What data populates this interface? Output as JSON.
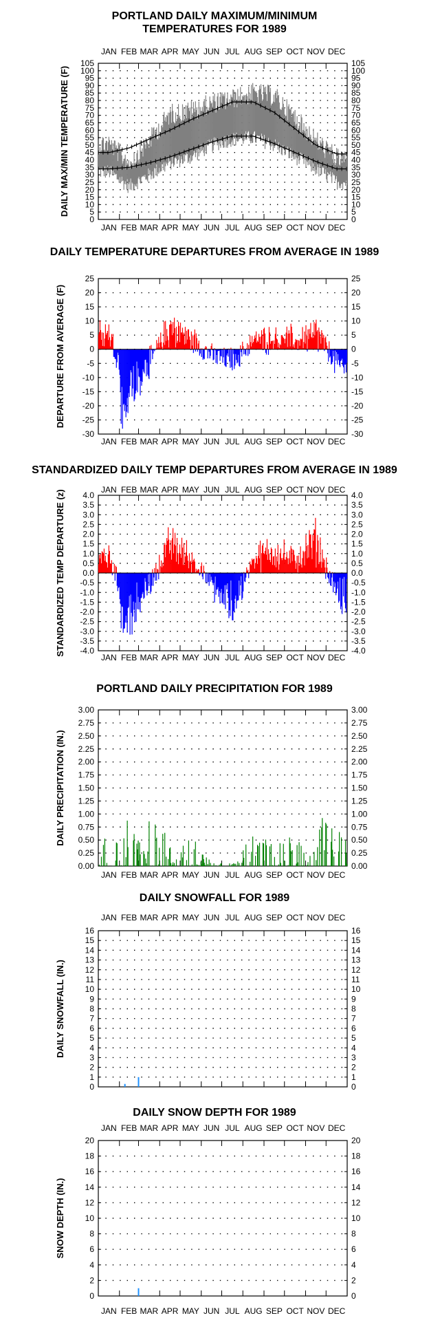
{
  "chart_data": [
    {
      "type": "line",
      "title": "PORTLAND DAILY MAXIMUM/MINIMUM\nTEMPERATURES FOR 1989",
      "xlabel": "",
      "ylabel": "DAILY MAX/MIN TEMPERATURE (F)",
      "months": [
        "JAN",
        "FEB",
        "MAR",
        "APR",
        "MAY",
        "JUN",
        "JUL",
        "AUG",
        "SEP",
        "OCT",
        "NOV",
        "DEC"
      ],
      "ylim": [
        0,
        105
      ],
      "yticks": [
        0,
        5,
        10,
        15,
        20,
        25,
        30,
        35,
        40,
        45,
        50,
        55,
        60,
        65,
        70,
        75,
        80,
        85,
        90,
        95,
        100,
        105
      ],
      "grid": true,
      "series": [
        {
          "name": "",
          "color": "#808080",
          "kind": "range",
          "values_monthly_low": [
            32,
            22,
            30,
            38,
            42,
            50,
            54,
            55,
            50,
            42,
            34,
            25
          ],
          "values_monthly_high": [
            58,
            45,
            60,
            78,
            80,
            85,
            88,
            92,
            90,
            75,
            60,
            48
          ]
        },
        {
          "name": "",
          "color": "#000000",
          "kind": "normal",
          "values_monthly": [
            45,
            48,
            54,
            60,
            67,
            73,
            79,
            79,
            72,
            61,
            50,
            44
          ]
        },
        {
          "name": "",
          "color": "#000000",
          "kind": "normal",
          "values_monthly": [
            34,
            35,
            38,
            42,
            47,
            52,
            56,
            56,
            51,
            45,
            39,
            34
          ]
        }
      ]
    },
    {
      "type": "bar",
      "title": "DAILY TEMPERATURE DEPARTURES FROM AVERAGE IN 1989",
      "xlabel": "",
      "ylabel": "DEPARTURE FROM AVERAGE (F)",
      "months": [
        "JAN",
        "FEB",
        "MAR",
        "APR",
        "MAY",
        "JUN",
        "JUL",
        "AUG",
        "SEP",
        "OCT",
        "NOV",
        "DEC"
      ],
      "ylim": [
        -30,
        25
      ],
      "yticks": [
        -30,
        -25,
        -20,
        -15,
        -10,
        -5,
        0,
        5,
        10,
        15,
        20,
        25
      ],
      "grid": true,
      "colors": {
        "positive": "#ff0000",
        "negative": "#0000ff"
      },
      "series": [
        {
          "name": "",
          "values_monthly": [
            8,
            -22,
            -6,
            10,
            5,
            -3,
            -6,
            4,
            6,
            4,
            8,
            -7
          ]
        }
      ]
    },
    {
      "type": "bar",
      "title": "STANDARDIZED DAILY TEMP DEPARTURES FROM AVERAGE IN 1989",
      "xlabel": "",
      "ylabel": "STANDARDIZED TEMP DEPARTURE (z)",
      "months": [
        "JAN",
        "FEB",
        "MAR",
        "APR",
        "MAY",
        "JUN",
        "JUL",
        "AUG",
        "SEP",
        "OCT",
        "NOV",
        "DEC"
      ],
      "ylim": [
        -4.0,
        4.0
      ],
      "yticks": [
        -4.0,
        -3.5,
        -3.0,
        -2.5,
        -2.0,
        -1.5,
        -1.0,
        -0.5,
        0.0,
        0.5,
        1.0,
        1.5,
        2.0,
        2.5,
        3.0,
        3.5,
        4.0
      ],
      "grid": true,
      "colors": {
        "positive": "#ff0000",
        "negative": "#0000ff"
      },
      "series": [
        {
          "name": "",
          "values_monthly": [
            1.2,
            -3.0,
            -0.8,
            2.0,
            1.0,
            -0.8,
            -2.5,
            1.0,
            1.5,
            0.8,
            2.2,
            -1.6
          ]
        }
      ]
    },
    {
      "type": "bar",
      "title": "PORTLAND DAILY PRECIPITATION FOR 1989",
      "xlabel": "",
      "ylabel": "DAILY PRECIPITATION (IN.)",
      "months": [
        "JAN",
        "FEB",
        "MAR",
        "APR",
        "MAY",
        "JUN",
        "JUL",
        "AUG",
        "SEP",
        "OCT",
        "NOV",
        "DEC"
      ],
      "ylim": [
        0,
        3.0
      ],
      "yticks": [
        0.0,
        0.25,
        0.5,
        0.75,
        1.0,
        1.25,
        1.5,
        1.75,
        2.0,
        2.25,
        2.5,
        2.75,
        3.0
      ],
      "grid": true,
      "colors": {
        "bar": "#008000"
      },
      "series": [
        {
          "name": "",
          "values_monthly": [
            0.7,
            1.0,
            0.9,
            0.6,
            0.6,
            0.1,
            0.05,
            0.8,
            0.4,
            0.7,
            1.1,
            0.7
          ]
        }
      ]
    },
    {
      "type": "bar",
      "title": "DAILY SNOWFALL FOR 1989",
      "xlabel": "",
      "ylabel": "DAILY SNOWFALL (IN.)",
      "months": [
        "JAN",
        "FEB",
        "MAR",
        "APR",
        "MAY",
        "JUN",
        "JUL",
        "AUG",
        "SEP",
        "OCT",
        "NOV",
        "DEC"
      ],
      "ylim": [
        0,
        16
      ],
      "yticks": [
        0,
        1,
        2,
        3,
        4,
        5,
        6,
        7,
        8,
        9,
        10,
        11,
        12,
        13,
        14,
        15,
        16
      ],
      "grid": true,
      "colors": {
        "bar": "#1e90ff"
      },
      "series": [
        {
          "name": "",
          "points": [
            {
              "day": 39,
              "value": 0.3
            },
            {
              "day": 59,
              "value": 1.0
            }
          ]
        }
      ]
    },
    {
      "type": "bar",
      "title": "DAILY SNOW DEPTH FOR 1989",
      "xlabel": "",
      "ylabel": "SNOW DEPTH (IN.)",
      "months": [
        "JAN",
        "FEB",
        "MAR",
        "APR",
        "MAY",
        "JUN",
        "JUL",
        "AUG",
        "SEP",
        "OCT",
        "NOV",
        "DEC"
      ],
      "ylim": [
        0,
        20
      ],
      "yticks": [
        0,
        2,
        4,
        6,
        8,
        10,
        12,
        14,
        16,
        18,
        20
      ],
      "grid": true,
      "colors": {
        "bar": "#1e90ff"
      },
      "series": [
        {
          "name": "",
          "points": [
            {
              "day": 59,
              "value": 1.0
            }
          ]
        }
      ]
    }
  ]
}
